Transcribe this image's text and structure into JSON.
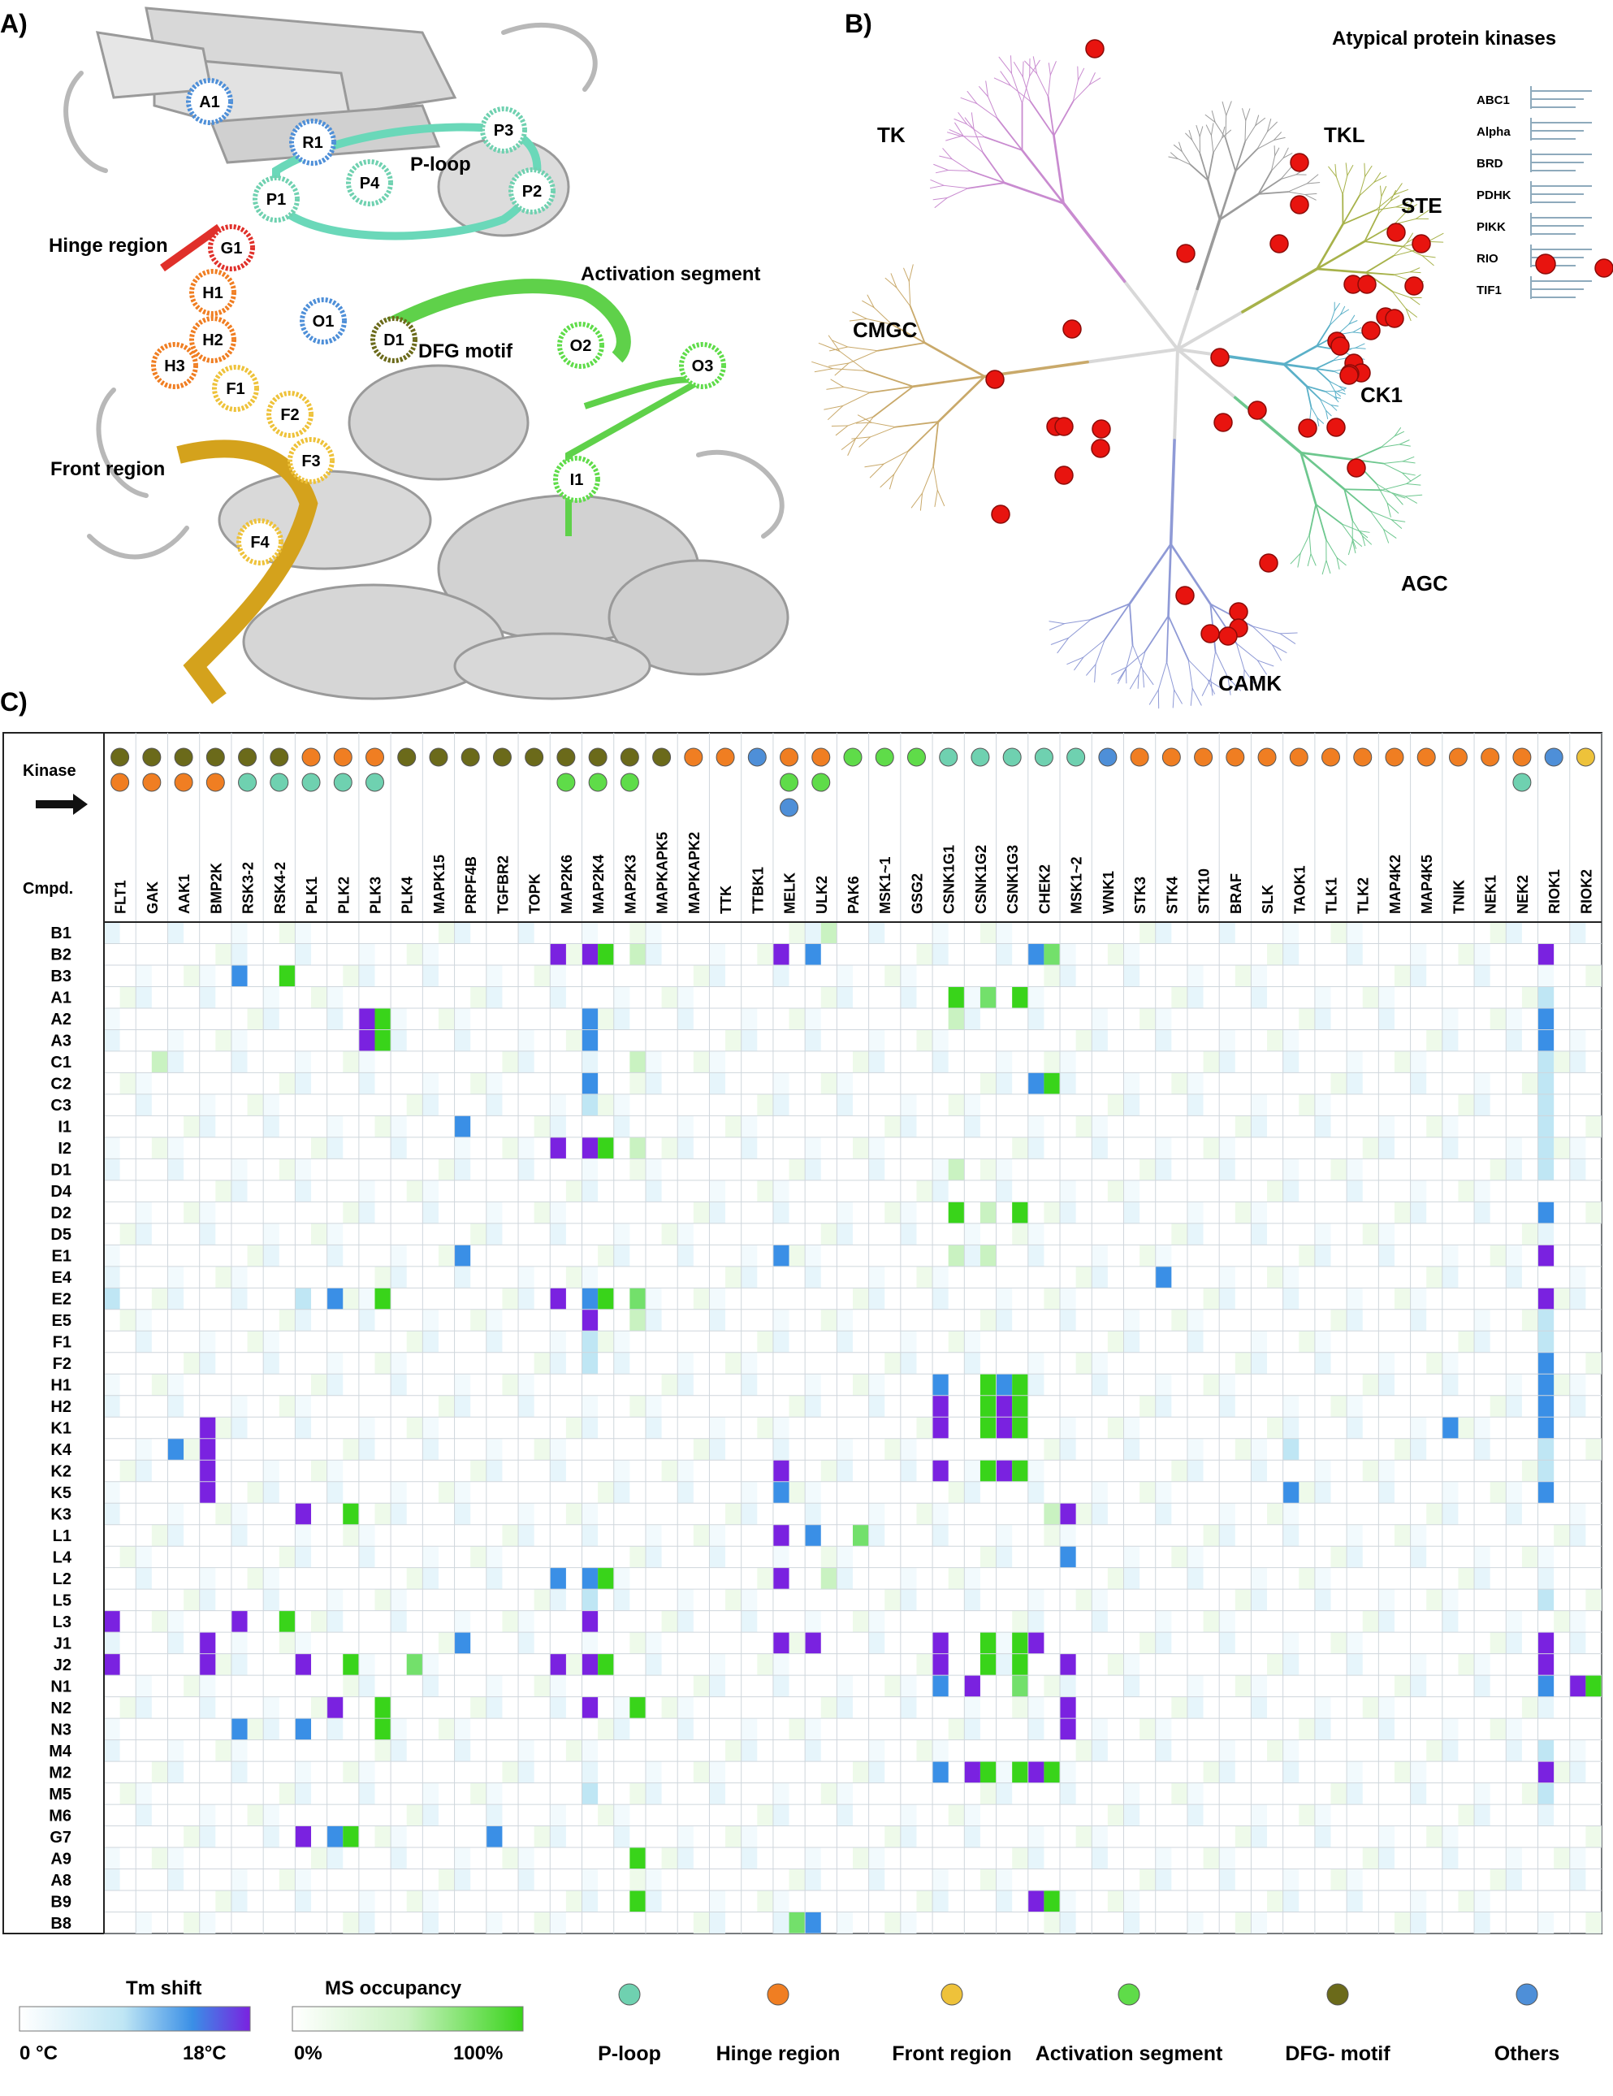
{
  "panels": {
    "a": {
      "label": "A)",
      "annotations": [
        "Hinge region",
        "Front region",
        "P-loop",
        "Activation segment",
        "DFG motif"
      ],
      "residues": [
        {
          "id": "A1",
          "group": "Others"
        },
        {
          "id": "R1",
          "group": "Others"
        },
        {
          "id": "P1",
          "group": "P-loop"
        },
        {
          "id": "P2",
          "group": "P-loop"
        },
        {
          "id": "P3",
          "group": "P-loop"
        },
        {
          "id": "P4",
          "group": "P-loop"
        },
        {
          "id": "G1",
          "group": "Gatekeeper"
        },
        {
          "id": "H1",
          "group": "Hinge region"
        },
        {
          "id": "H2",
          "group": "Hinge region"
        },
        {
          "id": "H3",
          "group": "Hinge region"
        },
        {
          "id": "F1",
          "group": "Front region"
        },
        {
          "id": "F2",
          "group": "Front region"
        },
        {
          "id": "F3",
          "group": "Front region"
        },
        {
          "id": "F4",
          "group": "Front region"
        },
        {
          "id": "O1",
          "group": "Others"
        },
        {
          "id": "D1",
          "group": "DFG- motif"
        },
        {
          "id": "O2",
          "group": "Activation segment"
        },
        {
          "id": "O3",
          "group": "Activation segment"
        },
        {
          "id": "I1",
          "group": "Activation segment"
        }
      ]
    },
    "b": {
      "label": "B)",
      "title": "Atypical protein kinases",
      "groups": [
        "TK",
        "TKL",
        "STE",
        "CMGC",
        "CK1",
        "AGC",
        "CAMK"
      ],
      "atypical_families": [
        "ABC1",
        "Alpha",
        "BRD",
        "PDHK",
        "PIKK",
        "RIO",
        "TIF1"
      ]
    },
    "c": {
      "label": "C)",
      "row_header_kinase": "Kinase",
      "row_header_cmpd": "Cmpd."
    }
  },
  "chart_data": {
    "type": "heatmap",
    "kinases": [
      "FLT1",
      "GAK",
      "AAK1",
      "BMP2K",
      "RSK3-2",
      "RSK4-2",
      "PLK1",
      "PLK2",
      "PLK3",
      "PLK4",
      "MAPK15",
      "PRPF4B",
      "TGFBR2",
      "TOPK",
      "MAP2K6",
      "MAP2K4",
      "MAP2K3",
      "MAPKAPK5",
      "MAPKAPK2",
      "TTK",
      "TTBK1",
      "MELK",
      "ULK2",
      "PAK6",
      "MSK1~1",
      "GSG2",
      "CSNK1G1",
      "CSNK1G2",
      "CSNK1G3",
      "CHEK2",
      "MSK1~2",
      "WNK1",
      "STK3",
      "STK4",
      "STK10",
      "BRAF",
      "SLK",
      "TAOK1",
      "TLK1",
      "TLK2",
      "MAP4K2",
      "MAP4K5",
      "TNIK",
      "NEK1",
      "NEK2",
      "RIOK1",
      "RIOK2"
    ],
    "kinase_dots": [
      [
        "DFG- motif",
        "Hinge region"
      ],
      [
        "DFG- motif",
        "Hinge region"
      ],
      [
        "DFG- motif",
        "Hinge region"
      ],
      [
        "DFG- motif",
        "Hinge region"
      ],
      [
        "DFG- motif",
        "P-loop"
      ],
      [
        "DFG- motif",
        "P-loop"
      ],
      [
        "Hinge region",
        "P-loop"
      ],
      [
        "Hinge region",
        "P-loop"
      ],
      [
        "Hinge region",
        "P-loop"
      ],
      [
        "DFG- motif"
      ],
      [
        "DFG- motif"
      ],
      [
        "DFG- motif"
      ],
      [
        "DFG- motif"
      ],
      [
        "DFG- motif"
      ],
      [
        "DFG- motif",
        "Activation segment"
      ],
      [
        "DFG- motif",
        "Activation segment"
      ],
      [
        "DFG- motif",
        "Activation segment"
      ],
      [
        "DFG- motif"
      ],
      [
        "Hinge region"
      ],
      [
        "Hinge region"
      ],
      [
        "Others"
      ],
      [
        "Hinge region",
        "Activation segment",
        "Others"
      ],
      [
        "Hinge region",
        "Activation segment"
      ],
      [
        "Activation segment"
      ],
      [
        "Activation segment"
      ],
      [
        "Activation segment"
      ],
      [
        "P-loop"
      ],
      [
        "P-loop"
      ],
      [
        "P-loop"
      ],
      [
        "P-loop"
      ],
      [
        "P-loop"
      ],
      [
        "Others"
      ],
      [
        "Hinge region"
      ],
      [
        "Hinge region"
      ],
      [
        "Hinge region"
      ],
      [
        "Hinge region"
      ],
      [
        "Hinge region"
      ],
      [
        "Hinge region"
      ],
      [
        "Hinge region"
      ],
      [
        "Hinge region"
      ],
      [
        "Hinge region"
      ],
      [
        "Hinge region"
      ],
      [
        "Hinge region"
      ],
      [
        "Hinge region"
      ],
      [
        "Hinge region",
        "P-loop"
      ],
      [
        "Others"
      ],
      [
        "Front region"
      ]
    ],
    "compounds": [
      "B1",
      "B2",
      "B3",
      "A1",
      "A2",
      "A3",
      "C1",
      "C2",
      "C3",
      "I1",
      "I2",
      "D1",
      "D4",
      "D2",
      "D5",
      "E1",
      "E4",
      "E2",
      "E5",
      "F1",
      "F2",
      "H1",
      "H2",
      "K1",
      "K4",
      "K2",
      "K5",
      "K3",
      "L1",
      "L4",
      "L2",
      "L5",
      "L3",
      "J1",
      "J2",
      "N1",
      "N2",
      "N3",
      "M4",
      "M2",
      "M5",
      "M6",
      "G7",
      "A9",
      "A8",
      "B9",
      "B8"
    ],
    "value_scale": "0 = none, 1 = weak, 2 = moderate, 3 = strong",
    "tm_shift": [
      [],
      [
        {
          "k": "MAP2K6",
          "v": 3
        },
        {
          "k": "MAP2K4",
          "v": 3
        },
        {
          "k": "MELK",
          "v": 3
        },
        {
          "k": "ULK2",
          "v": 2
        },
        {
          "k": "CHEK2",
          "v": 2
        },
        {
          "k": "RIOK1",
          "v": 3
        }
      ],
      [
        {
          "k": "RSK3-2",
          "v": 2
        }
      ],
      [
        {
          "k": "RIOK1",
          "v": 1
        }
      ],
      [
        {
          "k": "PLK3",
          "v": 3
        },
        {
          "k": "MAP2K4",
          "v": 2
        },
        {
          "k": "RIOK1",
          "v": 2
        }
      ],
      [
        {
          "k": "PLK3",
          "v": 3
        },
        {
          "k": "MAP2K4",
          "v": 2
        },
        {
          "k": "RIOK1",
          "v": 2
        }
      ],
      [
        {
          "k": "RIOK1",
          "v": 1
        }
      ],
      [
        {
          "k": "MAP2K4",
          "v": 2
        },
        {
          "k": "CHEK2",
          "v": 2
        },
        {
          "k": "RIOK1",
          "v": 1
        }
      ],
      [
        {
          "k": "MAP2K4",
          "v": 1
        },
        {
          "k": "RIOK1",
          "v": 1
        }
      ],
      [
        {
          "k": "PRPF4B",
          "v": 2
        },
        {
          "k": "RIOK1",
          "v": 1
        }
      ],
      [
        {
          "k": "MAP2K6",
          "v": 3
        },
        {
          "k": "MAP2K4",
          "v": 3
        },
        {
          "k": "RIOK1",
          "v": 1
        }
      ],
      [
        {
          "k": "RIOK1",
          "v": 1
        }
      ],
      [],
      [
        {
          "k": "RIOK1",
          "v": 2
        }
      ],
      [],
      [
        {
          "k": "MELK",
          "v": 2
        },
        {
          "k": "PRPF4B",
          "v": 2
        },
        {
          "k": "RIOK1",
          "v": 3
        }
      ],
      [
        {
          "k": "STK4",
          "v": 2
        }
      ],
      [
        {
          "k": "MAP2K6",
          "v": 3
        },
        {
          "k": "PLK2",
          "v": 2
        },
        {
          "k": "PLK1",
          "v": 1
        },
        {
          "k": "FLT1",
          "v": 1
        },
        {
          "k": "MAP2K4",
          "v": 2
        },
        {
          "k": "RIOK1",
          "v": 3
        }
      ],
      [
        {
          "k": "MAP2K4",
          "v": 3
        },
        {
          "k": "RIOK1",
          "v": 1
        }
      ],
      [
        {
          "k": "MAP2K4",
          "v": 1
        },
        {
          "k": "RIOK1",
          "v": 1
        }
      ],
      [
        {
          "k": "MAP2K4",
          "v": 1
        },
        {
          "k": "RIOK1",
          "v": 2
        }
      ],
      [
        {
          "k": "CSNK1G1",
          "v": 2
        },
        {
          "k": "CSNK1G3",
          "v": 2
        },
        {
          "k": "RIOK1",
          "v": 2
        }
      ],
      [
        {
          "k": "CSNK1G1",
          "v": 3
        },
        {
          "k": "CSNK1G3",
          "v": 3
        },
        {
          "k": "RIOK1",
          "v": 2
        }
      ],
      [
        {
          "k": "BMP2K",
          "v": 3
        },
        {
          "k": "CSNK1G1",
          "v": 3
        },
        {
          "k": "CSNK1G3",
          "v": 3
        },
        {
          "k": "TNIK",
          "v": 2
        },
        {
          "k": "RIOK1",
          "v": 2
        }
      ],
      [
        {
          "k": "BMP2K",
          "v": 3
        },
        {
          "k": "AAK1",
          "v": 2
        },
        {
          "k": "TAOK1",
          "v": 1
        },
        {
          "k": "RIOK1",
          "v": 1
        }
      ],
      [
        {
          "k": "BMP2K",
          "v": 3
        },
        {
          "k": "MELK",
          "v": 3
        },
        {
          "k": "CSNK1G1",
          "v": 3
        },
        {
          "k": "CSNK1G3",
          "v": 3
        },
        {
          "k": "RIOK1",
          "v": 1
        }
      ],
      [
        {
          "k": "BMP2K",
          "v": 3
        },
        {
          "k": "MELK",
          "v": 2
        },
        {
          "k": "TAOK1",
          "v": 2
        },
        {
          "k": "RIOK1",
          "v": 2
        }
      ],
      [
        {
          "k": "PLK1",
          "v": 3
        },
        {
          "k": "MSK1~2",
          "v": 3
        }
      ],
      [
        {
          "k": "MELK",
          "v": 3
        },
        {
          "k": "ULK2",
          "v": 2
        }
      ],
      [
        {
          "k": "MSK1~2",
          "v": 2
        }
      ],
      [
        {
          "k": "MAP2K6",
          "v": 2
        },
        {
          "k": "MAP2K4",
          "v": 2
        },
        {
          "k": "MELK",
          "v": 3
        }
      ],
      [
        {
          "k": "MAP2K4",
          "v": 1
        },
        {
          "k": "RIOK1",
          "v": 1
        }
      ],
      [
        {
          "k": "FLT1",
          "v": 3
        },
        {
          "k": "RSK3-2",
          "v": 3
        },
        {
          "k": "MAP2K4",
          "v": 3
        }
      ],
      [
        {
          "k": "BMP2K",
          "v": 3
        },
        {
          "k": "MELK",
          "v": 3
        },
        {
          "k": "ULK2",
          "v": 3
        },
        {
          "k": "CSNK1G1",
          "v": 3
        },
        {
          "k": "CHEK2",
          "v": 3
        },
        {
          "k": "PRPF4B",
          "v": 2
        },
        {
          "k": "RIOK1",
          "v": 3
        }
      ],
      [
        {
          "k": "FLT1",
          "v": 3
        },
        {
          "k": "BMP2K",
          "v": 3
        },
        {
          "k": "PLK1",
          "v": 3
        },
        {
          "k": "MAP2K6",
          "v": 3
        },
        {
          "k": "MAP2K4",
          "v": 3
        },
        {
          "k": "CSNK1G1",
          "v": 3
        },
        {
          "k": "MSK1~2",
          "v": 3
        },
        {
          "k": "RIOK1",
          "v": 3
        }
      ],
      [
        {
          "k": "CSNK1G1",
          "v": 2
        },
        {
          "k": "CSNK1G2",
          "v": 3
        },
        {
          "k": "RIOK2",
          "v": 3
        },
        {
          "k": "RIOK1",
          "v": 2
        }
      ],
      [
        {
          "k": "PLK2",
          "v": 3
        },
        {
          "k": "MAP2K4",
          "v": 3
        },
        {
          "k": "MSK1~2",
          "v": 3
        }
      ],
      [
        {
          "k": "RSK3-2",
          "v": 2
        },
        {
          "k": "PLK1",
          "v": 2
        },
        {
          "k": "MSK1~2",
          "v": 3
        }
      ],
      [
        {
          "k": "RIOK1",
          "v": 1
        }
      ],
      [
        {
          "k": "CSNK1G1",
          "v": 2
        },
        {
          "k": "CSNK1G2",
          "v": 3
        },
        {
          "k": "CHEK2",
          "v": 3
        },
        {
          "k": "RIOK1",
          "v": 3
        }
      ],
      [
        {
          "k": "MAP2K4",
          "v": 1
        },
        {
          "k": "RIOK1",
          "v": 1
        }
      ],
      [],
      [
        {
          "k": "PLK1",
          "v": 3
        },
        {
          "k": "PLK2",
          "v": 2
        },
        {
          "k": "TGFBR2",
          "v": 2
        }
      ],
      [],
      [],
      [
        {
          "k": "CHEK2",
          "v": 3
        }
      ],
      [
        {
          "k": "ULK2",
          "v": 2
        }
      ]
    ],
    "ms_occupancy": [
      [
        {
          "k": "ULK2",
          "v": 1
        }
      ],
      [
        {
          "k": "MAP2K4",
          "v": 3
        },
        {
          "k": "MAP2K3",
          "v": 1
        },
        {
          "k": "CHEK2",
          "v": 2
        }
      ],
      [
        {
          "k": "RSK4-2",
          "v": 3
        }
      ],
      [
        {
          "k": "CSNK1G1",
          "v": 3
        },
        {
          "k": "CSNK1G2",
          "v": 2
        },
        {
          "k": "CSNK1G3",
          "v": 3
        }
      ],
      [
        {
          "k": "PLK3",
          "v": 3
        },
        {
          "k": "CSNK1G1",
          "v": 1
        }
      ],
      [
        {
          "k": "PLK3",
          "v": 3
        }
      ],
      [
        {
          "k": "GAK",
          "v": 1
        },
        {
          "k": "MAP2K3",
          "v": 1
        }
      ],
      [
        {
          "k": "CHEK2",
          "v": 3
        }
      ],
      [],
      [],
      [
        {
          "k": "MAP2K4",
          "v": 3
        },
        {
          "k": "MAP2K3",
          "v": 1
        }
      ],
      [
        {
          "k": "CSNK1G1",
          "v": 1
        }
      ],
      [],
      [
        {
          "k": "CSNK1G1",
          "v": 3
        },
        {
          "k": "CSNK1G2",
          "v": 1
        },
        {
          "k": "CSNK1G3",
          "v": 3
        }
      ],
      [],
      [
        {
          "k": "CSNK1G1",
          "v": 1
        },
        {
          "k": "CSNK1G2",
          "v": 1
        }
      ],
      [],
      [
        {
          "k": "MAP2K4",
          "v": 3
        },
        {
          "k": "PLK3",
          "v": 3
        },
        {
          "k": "MAP2K3",
          "v": 2
        }
      ],
      [
        {
          "k": "MAP2K3",
          "v": 1
        }
      ],
      [],
      [],
      [
        {
          "k": "CSNK1G2",
          "v": 3
        },
        {
          "k": "CSNK1G3",
          "v": 3
        }
      ],
      [
        {
          "k": "CSNK1G2",
          "v": 3
        },
        {
          "k": "CSNK1G3",
          "v": 3
        }
      ],
      [
        {
          "k": "CSNK1G2",
          "v": 3
        },
        {
          "k": "CSNK1G3",
          "v": 3
        }
      ],
      [],
      [
        {
          "k": "CSNK1G2",
          "v": 3
        },
        {
          "k": "CSNK1G3",
          "v": 3
        }
      ],
      [],
      [
        {
          "k": "PLK2",
          "v": 3
        },
        {
          "k": "CHEK2",
          "v": 1
        }
      ],
      [
        {
          "k": "PAK6",
          "v": 2
        }
      ],
      [],
      [
        {
          "k": "MAP2K4",
          "v": 3
        },
        {
          "k": "ULK2",
          "v": 1
        }
      ],
      [],
      [
        {
          "k": "RSK4-2",
          "v": 3
        }
      ],
      [
        {
          "k": "CSNK1G2",
          "v": 3
        },
        {
          "k": "CSNK1G3",
          "v": 3
        }
      ],
      [
        {
          "k": "PLK2",
          "v": 3
        },
        {
          "k": "PLK4",
          "v": 2
        },
        {
          "k": "MAP2K4",
          "v": 3
        },
        {
          "k": "CSNK1G2",
          "v": 3
        },
        {
          "k": "CSNK1G3",
          "v": 3
        }
      ],
      [
        {
          "k": "CSNK1G3",
          "v": 2
        },
        {
          "k": "RIOK2",
          "v": 3
        }
      ],
      [
        {
          "k": "MAP2K3",
          "v": 3
        },
        {
          "k": "PLK3",
          "v": 3
        }
      ],
      [
        {
          "k": "PLK3",
          "v": 3
        }
      ],
      [],
      [
        {
          "k": "CSNK1G2",
          "v": 3
        },
        {
          "k": "CSNK1G3",
          "v": 3
        },
        {
          "k": "CHEK2",
          "v": 3
        }
      ],
      [],
      [],
      [
        {
          "k": "PLK2",
          "v": 3
        }
      ],
      [
        {
          "k": "MAP2K3",
          "v": 3
        }
      ],
      [],
      [
        {
          "k": "MAP2K3",
          "v": 3
        },
        {
          "k": "CHEK2",
          "v": 3
        }
      ],
      [
        {
          "k": "MELK",
          "v": 2
        }
      ]
    ]
  },
  "legend": {
    "tm_title": "Tm shift",
    "tm_min": "0 °C",
    "tm_max": "18°C",
    "ms_title": "MS occupancy",
    "ms_min": "0%",
    "ms_max": "100%",
    "categories": [
      {
        "name": "P-loop",
        "color": "#6fd1b0"
      },
      {
        "name": "Hinge region",
        "color": "#f07e22"
      },
      {
        "name": "Front region",
        "color": "#eec23a"
      },
      {
        "name": "Activation segment",
        "color": "#5fdc49"
      },
      {
        "name": "DFG- motif",
        "color": "#6b6a1a"
      },
      {
        "name": "Others",
        "color": "#4e8fd8"
      }
    ]
  },
  "colors": {
    "tm_scale": [
      "#ffffff",
      "#bfe6f4",
      "#3a8fe6",
      "#7a22e0"
    ],
    "ms_scale": [
      "#ffffff",
      "#c9f2c1",
      "#73e06b",
      "#39d41a"
    ],
    "tk": "#c98bd0",
    "tkl": "#9b9b9b",
    "ste": "#a7b24a",
    "cmgc": "#c9a96a",
    "ck1": "#5ab0c8",
    "agc": "#6dc78e",
    "camk": "#8f9ad6",
    "hit": "#e8140f"
  }
}
